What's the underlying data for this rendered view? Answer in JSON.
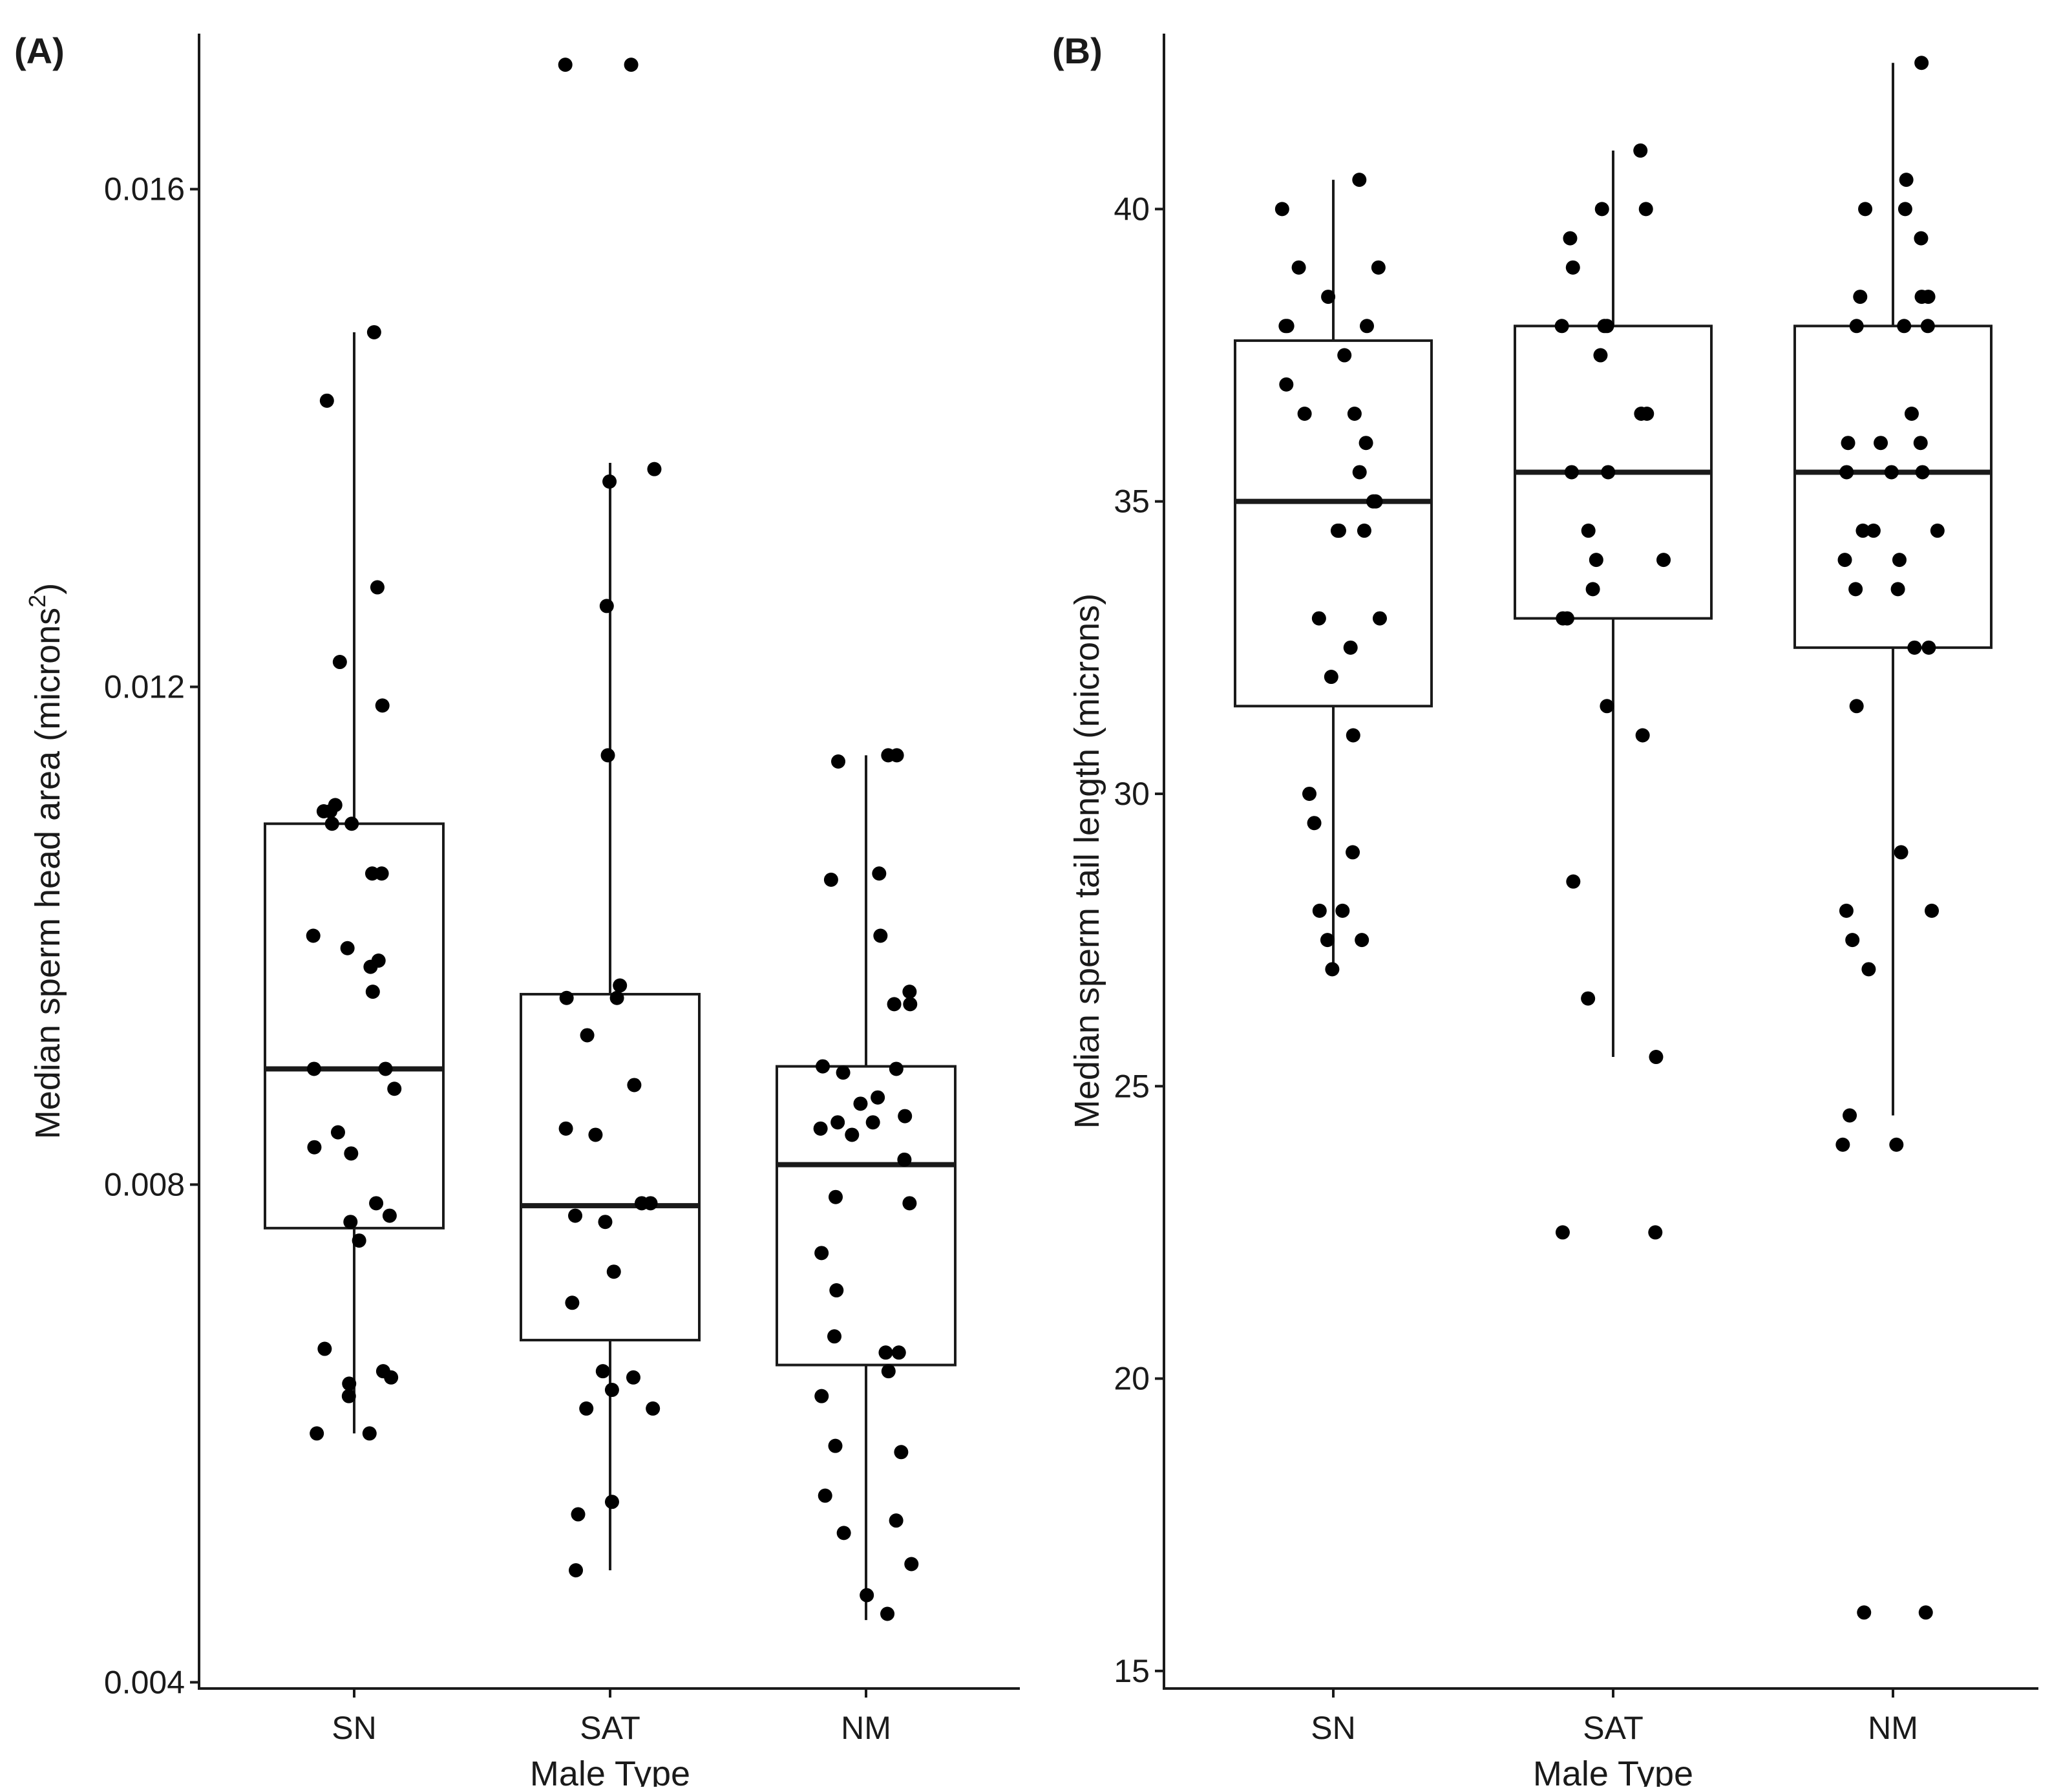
{
  "chart_data": [
    {
      "type": "boxplot",
      "panel_label": "(A)",
      "xlabel": "Male Type",
      "ylabel": "Median sperm head area (microns",
      "ylabel_superscript": "2",
      "ylabel_suffix": ")",
      "ylim": [
        0.00395,
        0.01725
      ],
      "yticks": [
        0.004,
        0.008,
        0.012,
        0.016
      ],
      "ytick_labels": [
        "0.004",
        "0.008",
        "0.012",
        "0.016"
      ],
      "categories": [
        "SN",
        "SAT",
        "NM"
      ],
      "boxes": [
        {
          "category": "SN",
          "whisker_low": 0.006,
          "q1": 0.00765,
          "median": 0.00893,
          "q3": 0.0109,
          "whisker_high": 0.01485
        },
        {
          "category": "SAT",
          "whisker_low": 0.0049,
          "q1": 0.00675,
          "median": 0.00783,
          "q3": 0.00953,
          "whisker_high": 0.0138
        },
        {
          "category": "NM",
          "whisker_low": 0.0045,
          "q1": 0.00655,
          "median": 0.00816,
          "q3": 0.00895,
          "whisker_high": 0.01145
        }
      ],
      "points": [
        {
          "category": "SN",
          "y": [
            0.01485,
            0.0143,
            0.0128,
            0.0122,
            0.01185,
            0.01105,
            0.011,
            0.011,
            0.0109,
            0.0109,
            0.0105,
            0.0105,
            0.01,
            0.0099,
            0.0098,
            0.00975,
            0.00955,
            0.00893,
            0.00893,
            0.00877,
            0.00842,
            0.0083,
            0.00825,
            0.00785,
            0.00775,
            0.0077,
            0.00755,
            0.00668,
            0.0065,
            0.00645,
            0.0064,
            0.0063,
            0.006,
            0.006
          ]
        },
        {
          "category": "SAT",
          "y": [
            0.017,
            0.017,
            0.01375,
            0.01365,
            0.01265,
            0.01145,
            0.0096,
            0.0095,
            0.0095,
            0.0092,
            0.0088,
            0.00845,
            0.0084,
            0.00785,
            0.00785,
            0.00775,
            0.0077,
            0.0073,
            0.00705,
            0.0065,
            0.00645,
            0.00635,
            0.0062,
            0.0062,
            0.00545,
            0.00535,
            0.0049
          ]
        },
        {
          "category": "NM",
          "y": [
            0.01145,
            0.01145,
            0.0114,
            0.0105,
            0.01045,
            0.01,
            0.00955,
            0.00945,
            0.00945,
            0.00895,
            0.00893,
            0.0089,
            0.0087,
            0.00865,
            0.00855,
            0.0085,
            0.0085,
            0.00845,
            0.0084,
            0.0082,
            0.0079,
            0.00785,
            0.00745,
            0.00715,
            0.00678,
            0.00665,
            0.00665,
            0.0065,
            0.0063,
            0.0059,
            0.00585,
            0.0055,
            0.0053,
            0.0052,
            0.00495,
            0.0047,
            0.00455
          ]
        }
      ]
    },
    {
      "type": "boxplot",
      "panel_label": "(B)",
      "xlabel": "Male Type",
      "ylabel": "Median sperm tail length (microns)",
      "ylim": [
        14.7,
        43.0
      ],
      "yticks": [
        15,
        20,
        25,
        30,
        35,
        40
      ],
      "ytick_labels": [
        "15",
        "20",
        "25",
        "30",
        "35",
        "40"
      ],
      "categories": [
        "SN",
        "SAT",
        "NM"
      ],
      "boxes": [
        {
          "category": "SN",
          "whisker_low": 27.0,
          "q1": 31.5,
          "median": 35.0,
          "q3": 37.75,
          "whisker_high": 40.5
        },
        {
          "category": "SAT",
          "whisker_low": 25.5,
          "q1": 33.0,
          "median": 35.5,
          "q3": 38.0,
          "whisker_high": 41.0
        },
        {
          "category": "NM",
          "whisker_low": 24.5,
          "q1": 32.5,
          "median": 35.5,
          "q3": 38.0,
          "whisker_high": 42.5
        }
      ],
      "points": [
        {
          "category": "SN",
          "y": [
            40.5,
            40.0,
            39.0,
            39.0,
            38.5,
            38.0,
            38.0,
            38.0,
            37.5,
            37.0,
            36.5,
            36.5,
            36.0,
            35.5,
            35.0,
            35.0,
            34.5,
            34.5,
            34.5,
            33.0,
            33.0,
            32.5,
            32.0,
            31.0,
            30.0,
            29.5,
            29.0,
            28.0,
            28.0,
            27.5,
            27.5,
            27.0
          ]
        },
        {
          "category": "SAT",
          "y": [
            41.0,
            40.0,
            40.0,
            39.5,
            39.0,
            38.0,
            38.0,
            38.0,
            37.5,
            36.5,
            36.5,
            35.5,
            35.5,
            34.5,
            34.0,
            34.0,
            33.5,
            33.0,
            33.0,
            31.5,
            31.0,
            28.5,
            26.5,
            25.5,
            22.5,
            22.5
          ]
        },
        {
          "category": "NM",
          "y": [
            42.5,
            40.5,
            40.0,
            40.0,
            39.5,
            38.5,
            38.5,
            38.5,
            38.0,
            38.0,
            38.0,
            36.5,
            36.0,
            36.0,
            36.0,
            35.5,
            35.5,
            35.5,
            34.5,
            34.5,
            34.5,
            34.0,
            34.0,
            33.5,
            33.5,
            32.5,
            32.5,
            31.5,
            29.0,
            28.0,
            28.0,
            27.5,
            27.0,
            24.5,
            24.0,
            24.0,
            16.0,
            16.0
          ]
        }
      ]
    }
  ]
}
